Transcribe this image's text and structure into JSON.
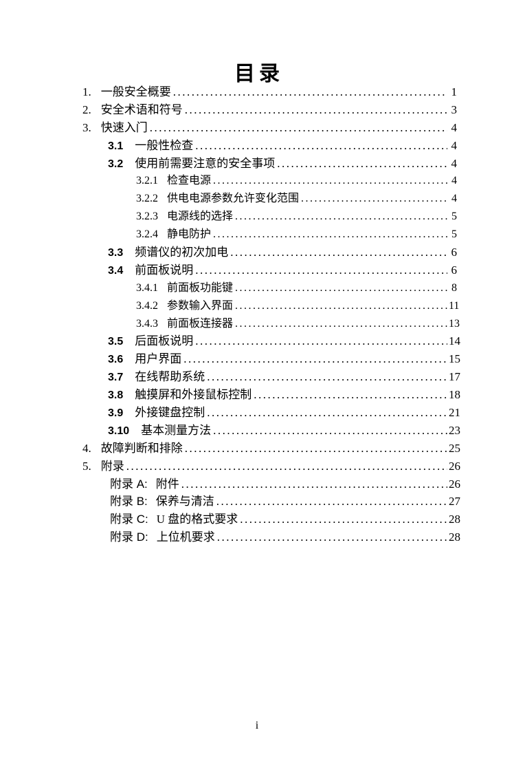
{
  "page": {
    "title": "目录",
    "footer_page_number": "i"
  },
  "toc": {
    "entries": [
      {
        "level": 1,
        "number": "1.",
        "label": "一般安全概要",
        "page": "1"
      },
      {
        "level": 1,
        "number": "2.",
        "label": "安全术语和符号",
        "page": "3"
      },
      {
        "level": 1,
        "number": "3.",
        "label": "快速入门",
        "page": "4"
      },
      {
        "level": 2,
        "number": "3.1",
        "label": "一般性检查",
        "page": "4"
      },
      {
        "level": 2,
        "number": "3.2",
        "label": "使用前需要注意的安全事项",
        "page": "4"
      },
      {
        "level": 3,
        "number": "3.2.1",
        "label": "检查电源",
        "page": "4"
      },
      {
        "level": 3,
        "number": "3.2.2",
        "label": "供电电源参数允许变化范围",
        "page": "4"
      },
      {
        "level": 3,
        "number": "3.2.3",
        "label": "电源线的选择",
        "page": "5"
      },
      {
        "level": 3,
        "number": "3.2.4",
        "label": "静电防护",
        "page": "5"
      },
      {
        "level": 2,
        "number": "3.3",
        "label": "频谱仪的初次加电",
        "page": "6"
      },
      {
        "level": 2,
        "number": "3.4",
        "label": "前面板说明",
        "page": "6"
      },
      {
        "level": 3,
        "number": "3.4.1",
        "label": "前面板功能键",
        "page": "8"
      },
      {
        "level": 3,
        "number": "3.4.2",
        "label": "参数输入界面",
        "page": "11"
      },
      {
        "level": 3,
        "number": "3.4.3",
        "label": "前面板连接器",
        "page": "13"
      },
      {
        "level": 2,
        "number": "3.5",
        "label": "后面板说明",
        "page": "14"
      },
      {
        "level": 2,
        "number": "3.6",
        "label": "用户界面",
        "page": "15"
      },
      {
        "level": 2,
        "number": "3.7",
        "label": "在线帮助系统",
        "page": "17"
      },
      {
        "level": 2,
        "number": "3.8",
        "label": "触摸屏和外接鼠标控制",
        "page": "18"
      },
      {
        "level": 2,
        "number": "3.9",
        "label": "外接键盘控制",
        "page": "21"
      },
      {
        "level": 2,
        "number": "3.10",
        "label": "基本测量方法",
        "page": "23"
      },
      {
        "level": 1,
        "number": "4.",
        "label": "故障判断和排除",
        "page": "25"
      },
      {
        "level": 1,
        "number": "5.",
        "label": "附录",
        "page": "26"
      },
      {
        "level": "appendix",
        "number": "附录 A:",
        "label": "附件",
        "page": "26"
      },
      {
        "level": "appendix",
        "number": "附录 B:",
        "label": "保养与清洁",
        "page": "27"
      },
      {
        "level": "appendix",
        "number": "附录 C:",
        "label": "U 盘的格式要求",
        "page": "28"
      },
      {
        "level": "appendix",
        "number": "附录 D:",
        "label": "上位机要求",
        "page": "28"
      }
    ]
  }
}
